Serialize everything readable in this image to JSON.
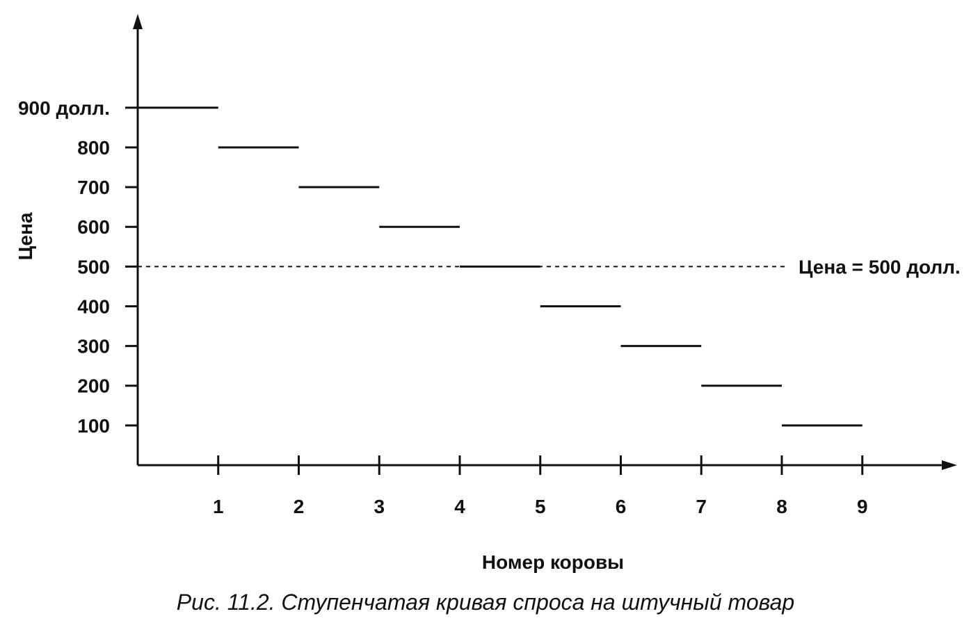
{
  "chart_data": {
    "type": "line",
    "subtype": "step",
    "xlabel": "Номер коровы",
    "ylabel": "Цена",
    "x_ticks": [
      "1",
      "2",
      "3",
      "4",
      "5",
      "6",
      "7",
      "8",
      "9"
    ],
    "y_ticks": [
      {
        "value": 900,
        "label": "900 долл."
      },
      {
        "value": 800,
        "label": "800"
      },
      {
        "value": 700,
        "label": "700"
      },
      {
        "value": 600,
        "label": "600"
      },
      {
        "value": 500,
        "label": "500"
      },
      {
        "value": 400,
        "label": "400"
      },
      {
        "value": 300,
        "label": "300"
      },
      {
        "value": 200,
        "label": "200"
      },
      {
        "value": 100,
        "label": "100"
      }
    ],
    "steps": [
      {
        "x_start": 0,
        "x_end": 1,
        "y": 900
      },
      {
        "x_start": 1,
        "x_end": 2,
        "y": 800
      },
      {
        "x_start": 2,
        "x_end": 3,
        "y": 700
      },
      {
        "x_start": 3,
        "x_end": 4,
        "y": 600
      },
      {
        "x_start": 4,
        "x_end": 5,
        "y": 500
      },
      {
        "x_start": 5,
        "x_end": 6,
        "y": 400
      },
      {
        "x_start": 6,
        "x_end": 7,
        "y": 300
      },
      {
        "x_start": 7,
        "x_end": 8,
        "y": 200
      },
      {
        "x_start": 8,
        "x_end": 9,
        "y": 100
      }
    ],
    "reference_line": {
      "y": 500,
      "label": "Цена = 500 долл.",
      "style": "dashed"
    },
    "xlim": [
      0,
      10.6
    ],
    "ylim": [
      0,
      1100
    ],
    "grid": false,
    "legend": "none"
  },
  "caption": "Рис. 11.2. Ступенчатая кривая спроса на штучный товар"
}
